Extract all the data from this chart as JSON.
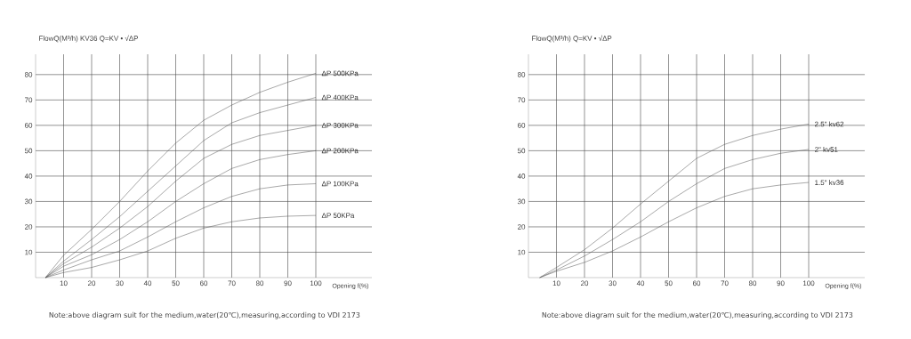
{
  "chart_data": [
    {
      "type": "line",
      "ylabel": "FlowQ(M³/h)  KV36  Q=KV • √ΔP",
      "xlabel": "Opening f(%)",
      "x": [
        3.5,
        10,
        20,
        30,
        40,
        50,
        60,
        70,
        80,
        90,
        100
      ],
      "series": [
        {
          "name": "ΔP 500KPa",
          "color": "#505050",
          "values": [
            0,
            8.8,
            19,
            30,
            42,
            53,
            62,
            68,
            73,
            77,
            80.5
          ]
        },
        {
          "name": "ΔP 400KPa",
          "color": "#505050",
          "values": [
            0,
            6.5,
            15,
            24,
            34,
            44,
            54,
            61,
            65,
            68,
            71
          ]
        },
        {
          "name": "ΔP 300KPa",
          "color": "#505050",
          "values": [
            0,
            5.5,
            12,
            19.5,
            28,
            38,
            47,
            52.5,
            56,
            58,
            60
          ]
        },
        {
          "name": "ΔP 200KPa",
          "color": "#505050",
          "values": [
            0,
            4.5,
            9,
            15,
            22,
            30,
            37,
            43,
            46.5,
            48.5,
            50
          ]
        },
        {
          "name": "ΔP 100KPa",
          "color": "#505050",
          "values": [
            0,
            3,
            7,
            10.5,
            16,
            22,
            27.5,
            32,
            35,
            36.5,
            37
          ]
        },
        {
          "name": "ΔP 50KPa",
          "color": "#505050",
          "values": [
            0,
            2,
            4,
            7,
            10.5,
            15.5,
            19.5,
            22,
            23.5,
            24.2,
            24.5
          ]
        }
      ],
      "xlim": [
        0,
        120
      ],
      "ylim": [
        0,
        88
      ],
      "xticks": [
        10,
        20,
        30,
        40,
        50,
        60,
        70,
        80,
        90,
        100
      ],
      "yticks": [
        10,
        20,
        30,
        40,
        50,
        60,
        70,
        80
      ],
      "grid": true,
      "annotations": [
        "Note:above diagram suit for the medium,water(20℃),measuring,according to VDI 2173"
      ]
    },
    {
      "type": "line",
      "ylabel": "FlowQ(M³/h) Q=KV • √ΔP",
      "xlabel": "Opening f(%)",
      "x": [
        4,
        10,
        20,
        30,
        40,
        50,
        60,
        70,
        80,
        90,
        100
      ],
      "series": [
        {
          "name": "2.5\" kv62",
          "color": "#505050",
          "values": [
            0,
            4,
            11,
            19.5,
            29,
            38,
            47,
            52.5,
            56,
            58.5,
            60.5
          ]
        },
        {
          "name": "2\" kv51",
          "color": "#505050",
          "values": [
            0,
            3,
            8.5,
            15,
            22,
            30,
            37,
            43,
            46.5,
            49,
            50.5
          ]
        },
        {
          "name": "1.5\" kv36",
          "color": "#505050",
          "values": [
            0,
            2.5,
            6,
            10.5,
            16,
            22,
            27.5,
            32,
            35,
            36.5,
            37.5
          ]
        }
      ],
      "xlim": [
        0,
        120
      ],
      "ylim": [
        0,
        88
      ],
      "xticks": [
        10,
        20,
        30,
        40,
        50,
        60,
        70,
        80,
        90,
        100
      ],
      "yticks": [
        10,
        20,
        30,
        40,
        50,
        60,
        70,
        80
      ],
      "grid": true,
      "annotations": [
        "Note:above diagram suit for the medium,water(20℃),measuring,according to VDI 2173"
      ]
    }
  ]
}
